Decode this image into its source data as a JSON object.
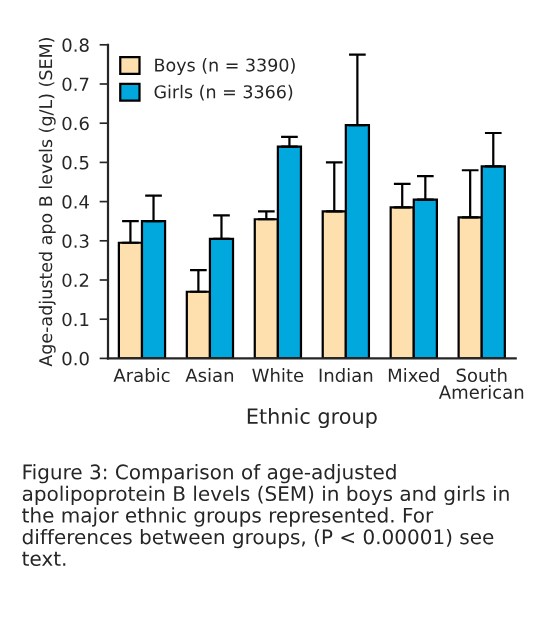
{
  "chart_data": {
    "type": "bar",
    "categories": [
      "Arabic",
      "Asian",
      "White",
      "Indian",
      "Mixed",
      "South\nAmerican"
    ],
    "xlabel": "Ethnic group",
    "ylabel": "Age-adjusted apo B levels (g/L) (SEM)",
    "series": [
      {
        "name": "Boys (n = 3390)",
        "color": "#fde0ae",
        "values": [
          0.295,
          0.17,
          0.355,
          0.375,
          0.385,
          0.36
        ],
        "errors": [
          [
            0.295,
            0.35
          ],
          [
            0.17,
            0.225
          ],
          [
            0.355,
            0.375
          ],
          [
            0.375,
            0.5
          ],
          [
            0.385,
            0.445
          ],
          [
            0.36,
            0.48
          ]
        ]
      },
      {
        "name": "Girls (n = 3366)",
        "color": "#00a8de",
        "values": [
          0.35,
          0.305,
          0.54,
          0.595,
          0.405,
          0.49
        ],
        "errors": [
          [
            0.35,
            0.415
          ],
          [
            0.305,
            0.365
          ],
          [
            0.54,
            0.565
          ],
          [
            0.595,
            0.775
          ],
          [
            0.405,
            0.465
          ],
          [
            0.49,
            0.575
          ]
        ]
      }
    ],
    "ylim": [
      0,
      0.8
    ],
    "yticks": [
      {
        "value": 0,
        "label": "0.0"
      },
      0.1,
      0.2,
      0.3,
      0.4,
      0.5,
      0.6,
      0.7,
      0.8
    ],
    "legend": "top left",
    "grid": false,
    "annotations": [
      "Figure 3: Comparison of age-adjusted apolipoprotein B levels (SEM) in boys and girls in the major ethnic groups represented. For differences between groups, (P < 0.00001) see text."
    ]
  }
}
